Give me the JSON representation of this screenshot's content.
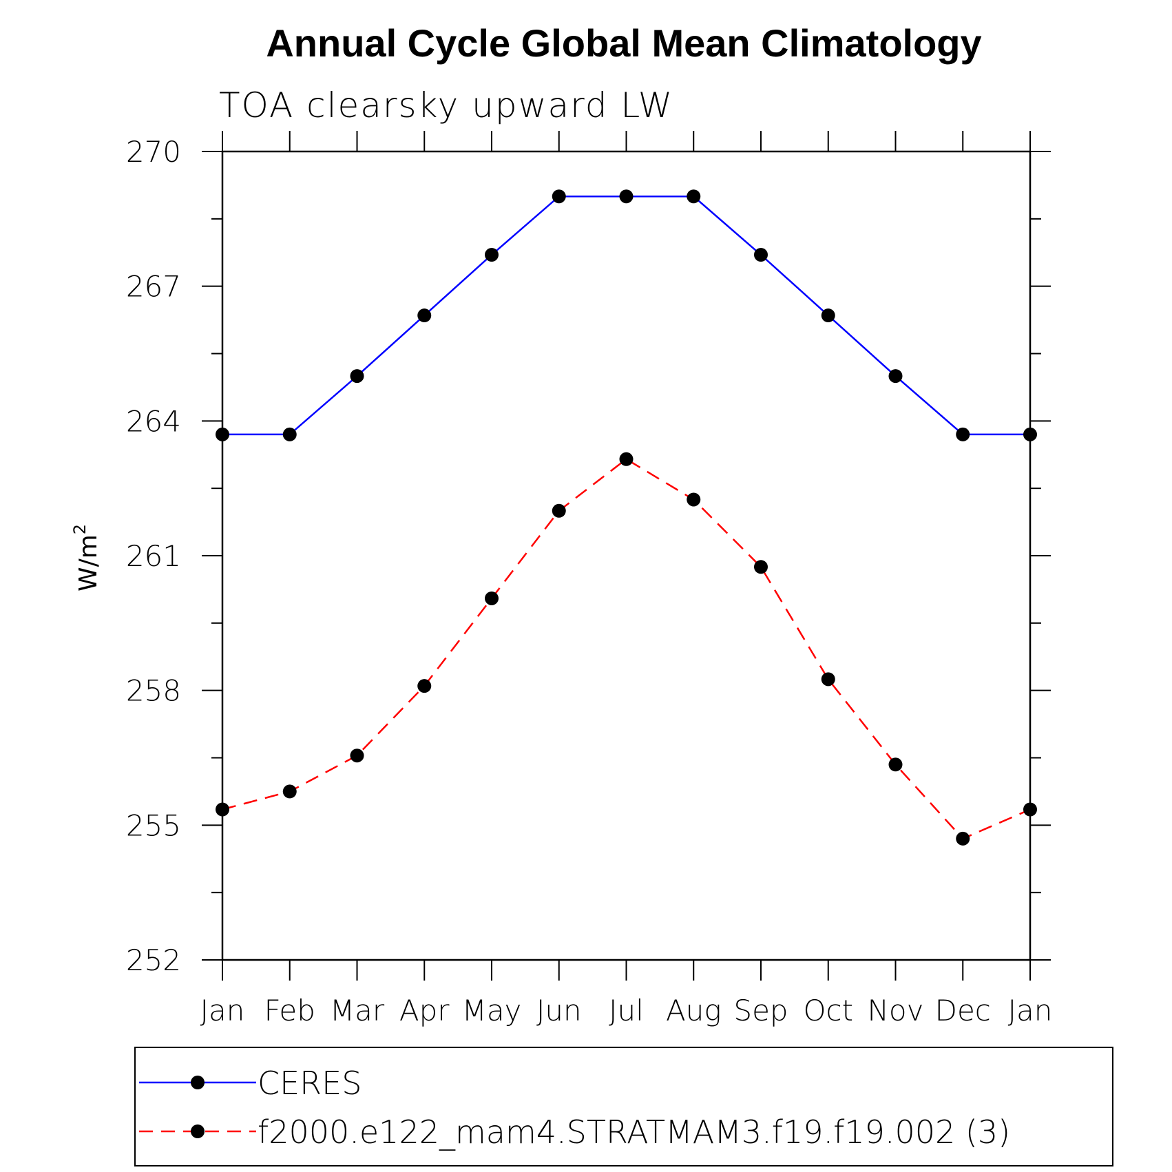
{
  "chart_data": {
    "type": "line",
    "title": "Annual Cycle Global Mean Climatology",
    "subtitle": "TOA clearsky upward LW",
    "ylabel": "W/m",
    "ylabel_sup": "2",
    "categories": [
      "Jan",
      "Feb",
      "Mar",
      "Apr",
      "May",
      "Jun",
      "Jul",
      "Aug",
      "Sep",
      "Oct",
      "Nov",
      "Dec",
      "Jan"
    ],
    "ylim": [
      252,
      270
    ],
    "yticks": [
      252,
      255,
      258,
      261,
      264,
      267,
      270
    ],
    "series": [
      {
        "name": "CERES",
        "color": "#0000ff",
        "dash": "solid",
        "marker": "filled-circle",
        "values": [
          263.7,
          263.7,
          265.0,
          266.35,
          267.7,
          269.0,
          269.0,
          269.0,
          267.7,
          266.35,
          265.0,
          263.7,
          263.7
        ]
      },
      {
        "name": "f2000.e122_mam4.STRATMAM3.f19.f19.002 (3)",
        "color": "#ff0000",
        "dash": "dashed",
        "marker": "filled-circle",
        "values": [
          255.35,
          255.75,
          256.55,
          258.1,
          260.05,
          262.0,
          263.15,
          262.25,
          260.75,
          258.25,
          256.35,
          254.7,
          255.35
        ]
      }
    ],
    "legend": "bottom"
  }
}
